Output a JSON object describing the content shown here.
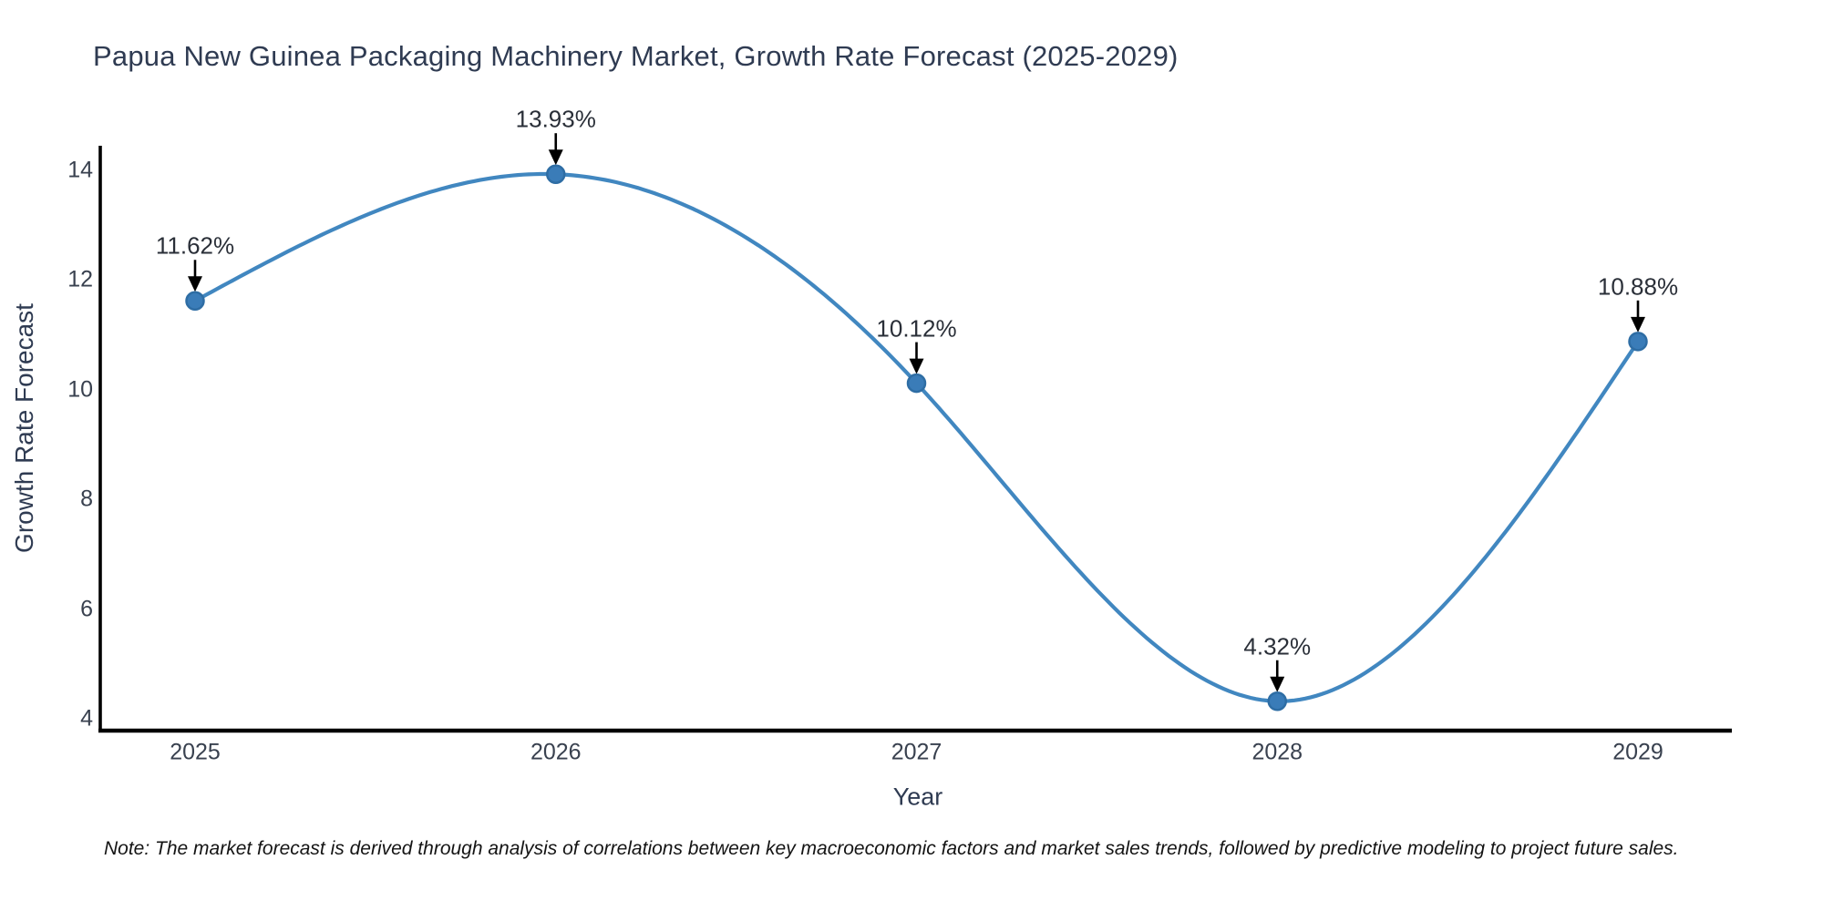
{
  "page": {
    "background": "#ffffff"
  },
  "chart_data": {
    "type": "line",
    "line_shape": "spline",
    "title": "Papua New Guinea Packaging Machinery Market, Growth Rate Forecast (2025-2029)",
    "xlabel": "Year",
    "ylabel": "Growth Rate Forecast",
    "categories": [
      "2025",
      "2026",
      "2027",
      "2028",
      "2029"
    ],
    "series": [
      {
        "name": "Growth Rate Forecast",
        "values": [
          11.62,
          13.93,
          10.12,
          4.32,
          10.88
        ]
      }
    ],
    "point_labels": [
      "11.62%",
      "13.93%",
      "10.12%",
      "4.32%",
      "10.88%"
    ],
    "yticks": [
      4,
      6,
      8,
      10,
      12,
      14
    ],
    "ylim": [
      3.6,
      14.7
    ],
    "grid": false,
    "legend": "none",
    "annotations_have_arrows": true,
    "colors": {
      "line": "#4187c0",
      "marker_fill": "#3a7cb8",
      "marker_edge": "#2e6da4",
      "axis": "#000000",
      "heading_text": "#2f3b52",
      "tick_text": "#39414f",
      "annotation_text": "#2a2f38",
      "annotation_arrow": "#000000"
    }
  },
  "note": {
    "text": "Note: The market forecast is derived through analysis of correlations between key macroeconomic factors and market sales trends, followed by predictive modeling to project future sales."
  }
}
